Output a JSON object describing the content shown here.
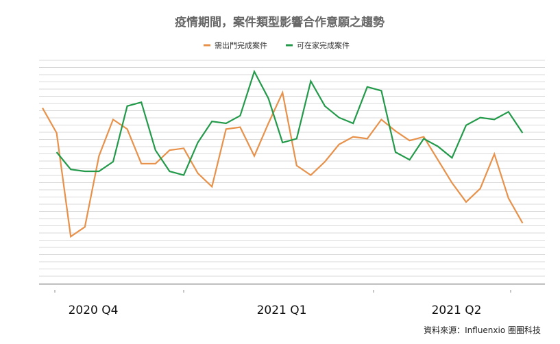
{
  "chart_data": {
    "type": "line",
    "title": "疫情期間，案件類型影響合作意願之趨勢",
    "source": "資料來源：Influenxio 圈圈科技",
    "quarters": [
      "2020 Q4",
      "2021 Q1",
      "2021 Q2"
    ],
    "ylim": [
      0,
      100
    ],
    "y_axis_labels": false,
    "grid": true,
    "legend_position": "top",
    "series": [
      {
        "name": "需出門完成案件",
        "color": "#e8914a",
        "start_index": 0,
        "values": [
          78,
          65,
          11,
          16,
          53,
          72,
          67,
          49,
          49,
          56,
          57,
          44,
          37,
          67,
          68,
          53,
          70,
          86,
          48,
          43,
          50,
          59,
          63,
          62,
          72,
          66,
          61,
          63,
          51,
          39,
          29,
          36,
          54,
          31,
          18
        ]
      },
      {
        "name": "可在家完成案件",
        "color": "#229a4a",
        "start_index": 1,
        "values": [
          55,
          46,
          45,
          45,
          50,
          79,
          81,
          56,
          45,
          43,
          60,
          71,
          70,
          74,
          97,
          83,
          60,
          62,
          92,
          79,
          73,
          70,
          89,
          87,
          55,
          51,
          62,
          58,
          52,
          69,
          73,
          72,
          76,
          65
        ]
      }
    ]
  }
}
